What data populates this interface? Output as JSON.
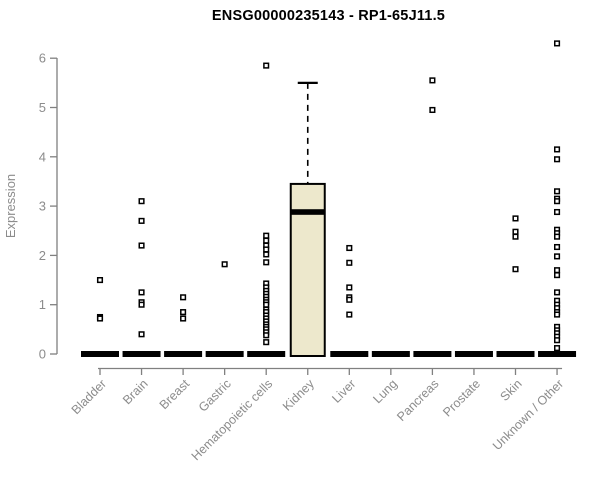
{
  "title": "ENSG00000235143 - RP1-65J11.5",
  "colors": {
    "background": "#FFFFFF",
    "title_text": "#000000",
    "axis_line": "#808080",
    "axis_text": "#8C8C8C",
    "box_fill": "#EDE8CC",
    "box_stroke": "#000000",
    "outlier_fill": "#FFFFFF",
    "outlier_stroke": "#000000"
  },
  "chart_data": {
    "type": "boxplot",
    "title": "ENSG00000235143 - RP1-65J11.5",
    "xlabel": "",
    "ylabel": "Expression",
    "ylim": [
      0,
      6.4
    ],
    "yticks": [
      0,
      1,
      2,
      3,
      4,
      5,
      6
    ],
    "grid": false,
    "legend": false,
    "categories": [
      "Bladder",
      "Brain",
      "Breast",
      "Gastric",
      "Hematopoietic cells",
      "Kidney",
      "Liver",
      "Lung",
      "Pancreas",
      "Prostate",
      "Skin",
      "Unknown / Other"
    ],
    "boxes": [
      {
        "category": "Bladder",
        "q1": 0,
        "median": 0,
        "q3": 0,
        "whisker_low": 0,
        "whisker_high": 0,
        "outliers": [
          1.5,
          0.75,
          0.72
        ]
      },
      {
        "category": "Brain",
        "q1": 0,
        "median": 0,
        "q3": 0,
        "whisker_low": 0,
        "whisker_high": 0,
        "outliers": [
          3.1,
          2.7,
          2.2,
          1.25,
          1.05,
          1.0,
          0.4
        ]
      },
      {
        "category": "Breast",
        "q1": 0,
        "median": 0,
        "q3": 0,
        "whisker_low": 0,
        "whisker_high": 0,
        "outliers": [
          1.15,
          0.85,
          0.72
        ]
      },
      {
        "category": "Gastric",
        "q1": 0,
        "median": 0,
        "q3": 0,
        "whisker_low": 0,
        "whisker_high": 0,
        "outliers": [
          1.82
        ]
      },
      {
        "category": "Hematopoietic cells",
        "q1": 0,
        "median": 0,
        "q3": 0,
        "whisker_low": 0,
        "whisker_high": 0,
        "outliers": [
          5.85,
          2.4,
          2.3,
          2.2,
          2.12,
          2.02,
          1.86,
          1.43,
          1.35,
          1.28,
          1.22,
          1.16,
          1.1,
          1.05,
          1.0,
          0.9,
          0.85,
          0.78,
          0.72,
          0.66,
          0.6,
          0.55,
          0.5,
          0.44,
          0.38,
          0.24
        ]
      },
      {
        "category": "Kidney",
        "q1": 0,
        "median": 2.88,
        "q3": 3.45,
        "whisker_low": 0,
        "whisker_high": 5.5,
        "outliers": []
      },
      {
        "category": "Liver",
        "q1": 0,
        "median": 0,
        "q3": 0,
        "whisker_low": 0,
        "whisker_high": 0,
        "outliers": [
          2.15,
          1.85,
          1.35,
          1.15,
          1.1,
          0.8
        ]
      },
      {
        "category": "Lung",
        "q1": 0,
        "median": 0,
        "q3": 0,
        "whisker_low": 0,
        "whisker_high": 0,
        "outliers": []
      },
      {
        "category": "Pancreas",
        "q1": 0,
        "median": 0,
        "q3": 0,
        "whisker_low": 0,
        "whisker_high": 0,
        "outliers": [
          5.55,
          4.95
        ]
      },
      {
        "category": "Prostate",
        "q1": 0,
        "median": 0,
        "q3": 0,
        "whisker_low": 0,
        "whisker_high": 0,
        "outliers": []
      },
      {
        "category": "Skin",
        "q1": 0,
        "median": 0,
        "q3": 0,
        "whisker_low": 0,
        "whisker_high": 0,
        "outliers": [
          2.75,
          2.48,
          2.38,
          1.72
        ]
      },
      {
        "category": "Unknown / Other",
        "q1": 0,
        "median": 0,
        "q3": 0,
        "whisker_low": 0,
        "whisker_high": 0,
        "outliers": [
          6.3,
          4.15,
          3.95,
          3.3,
          3.15,
          3.1,
          2.88,
          2.52,
          2.45,
          2.38,
          2.17,
          1.98,
          1.7,
          1.6,
          1.25,
          1.08,
          1.0,
          0.93,
          0.85,
          0.8,
          0.55,
          0.48,
          0.42,
          0.35,
          0.28,
          0.12
        ]
      }
    ]
  }
}
